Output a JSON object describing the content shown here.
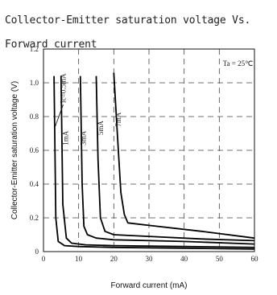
{
  "chart_data": {
    "type": "line",
    "title": "Collector-Emitter saturation voltage Vs. Forward current",
    "xlabel": "Forward current (mA)",
    "ylabel": "Collector-Emitter saturation voltage (V)",
    "xlim": [
      0,
      60
    ],
    "ylim": [
      0,
      1.2
    ],
    "xticks": [
      0,
      10,
      20,
      30,
      40,
      50,
      60
    ],
    "yticks": [
      0,
      0.2,
      0.4,
      0.6,
      0.8,
      1.0,
      1.2
    ],
    "grid": "dashed",
    "annotation": "Ta = 25℃",
    "series": [
      {
        "name": "Ic=0.5mA",
        "x": [
          3,
          3.5,
          4.2,
          6,
          10,
          20,
          40,
          60
        ],
        "y": [
          1.04,
          0.2,
          0.06,
          0.035,
          0.03,
          0.025,
          0.02,
          0.015
        ]
      },
      {
        "name": "1mA",
        "x": [
          5,
          5.5,
          6.5,
          8,
          12,
          20,
          40,
          60
        ],
        "y": [
          1.04,
          0.28,
          0.08,
          0.05,
          0.04,
          0.035,
          0.03,
          0.025
        ]
      },
      {
        "name": "3mA",
        "x": [
          10.5,
          11,
          11.5,
          12.5,
          15,
          20,
          40,
          60
        ],
        "y": [
          1.04,
          0.4,
          0.15,
          0.1,
          0.08,
          0.07,
          0.06,
          0.045
        ]
      },
      {
        "name": "5mA",
        "x": [
          15,
          15.5,
          16.2,
          17.5,
          20,
          30,
          45,
          60
        ],
        "y": [
          1.04,
          0.55,
          0.2,
          0.12,
          0.1,
          0.09,
          0.075,
          0.065
        ]
      },
      {
        "name": "7mA",
        "x": [
          20,
          21,
          22,
          23,
          24,
          30,
          45,
          60
        ],
        "y": [
          1.06,
          0.7,
          0.35,
          0.22,
          0.17,
          0.155,
          0.12,
          0.08
        ]
      }
    ]
  },
  "title_lines": [
    "Collector-Emitter saturation voltage Vs.",
    "Forward current"
  ]
}
